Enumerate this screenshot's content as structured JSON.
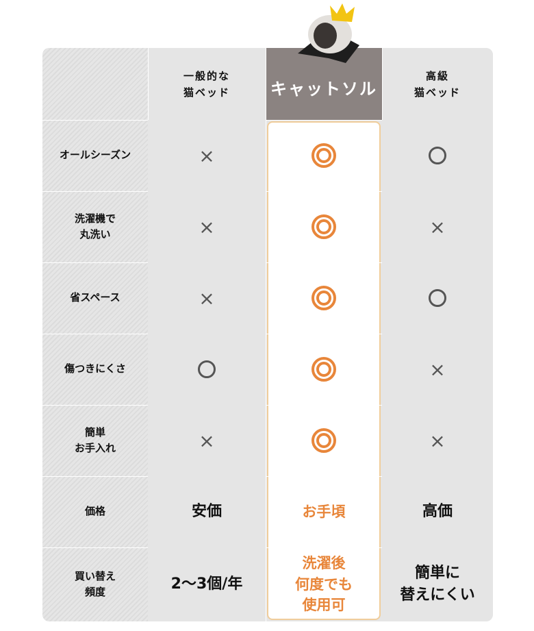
{
  "columns": [
    "一般的な\n猫ベッド",
    "キャットソル",
    "高級\n猫ベッド"
  ],
  "colors": {
    "accent": "#e8863a",
    "brand_header": "#8b8381",
    "highlight_border": "#f0cd9b"
  },
  "rows": [
    {
      "label": "オールシーズン",
      "values": [
        "cross",
        "double-circle",
        "circle"
      ]
    },
    {
      "label": "洗濯機で\n丸洗い",
      "values": [
        "cross",
        "double-circle",
        "cross"
      ]
    },
    {
      "label": "省スペース",
      "values": [
        "cross",
        "double-circle",
        "circle"
      ]
    },
    {
      "label": "傷つきにくさ",
      "values": [
        "circle",
        "double-circle",
        "cross"
      ]
    },
    {
      "label": "簡単\nお手入れ",
      "values": [
        "cross",
        "double-circle",
        "cross"
      ]
    },
    {
      "label": "価格",
      "values": [
        "安価",
        "お手頃",
        "高価"
      ]
    },
    {
      "label": "買い替え\n頻度",
      "values": [
        "2〜3個/年",
        "洗濯後\n何度でも\n使用可",
        "簡単に\n替えにくい"
      ]
    }
  ],
  "symbols": {
    "cross": "×"
  }
}
